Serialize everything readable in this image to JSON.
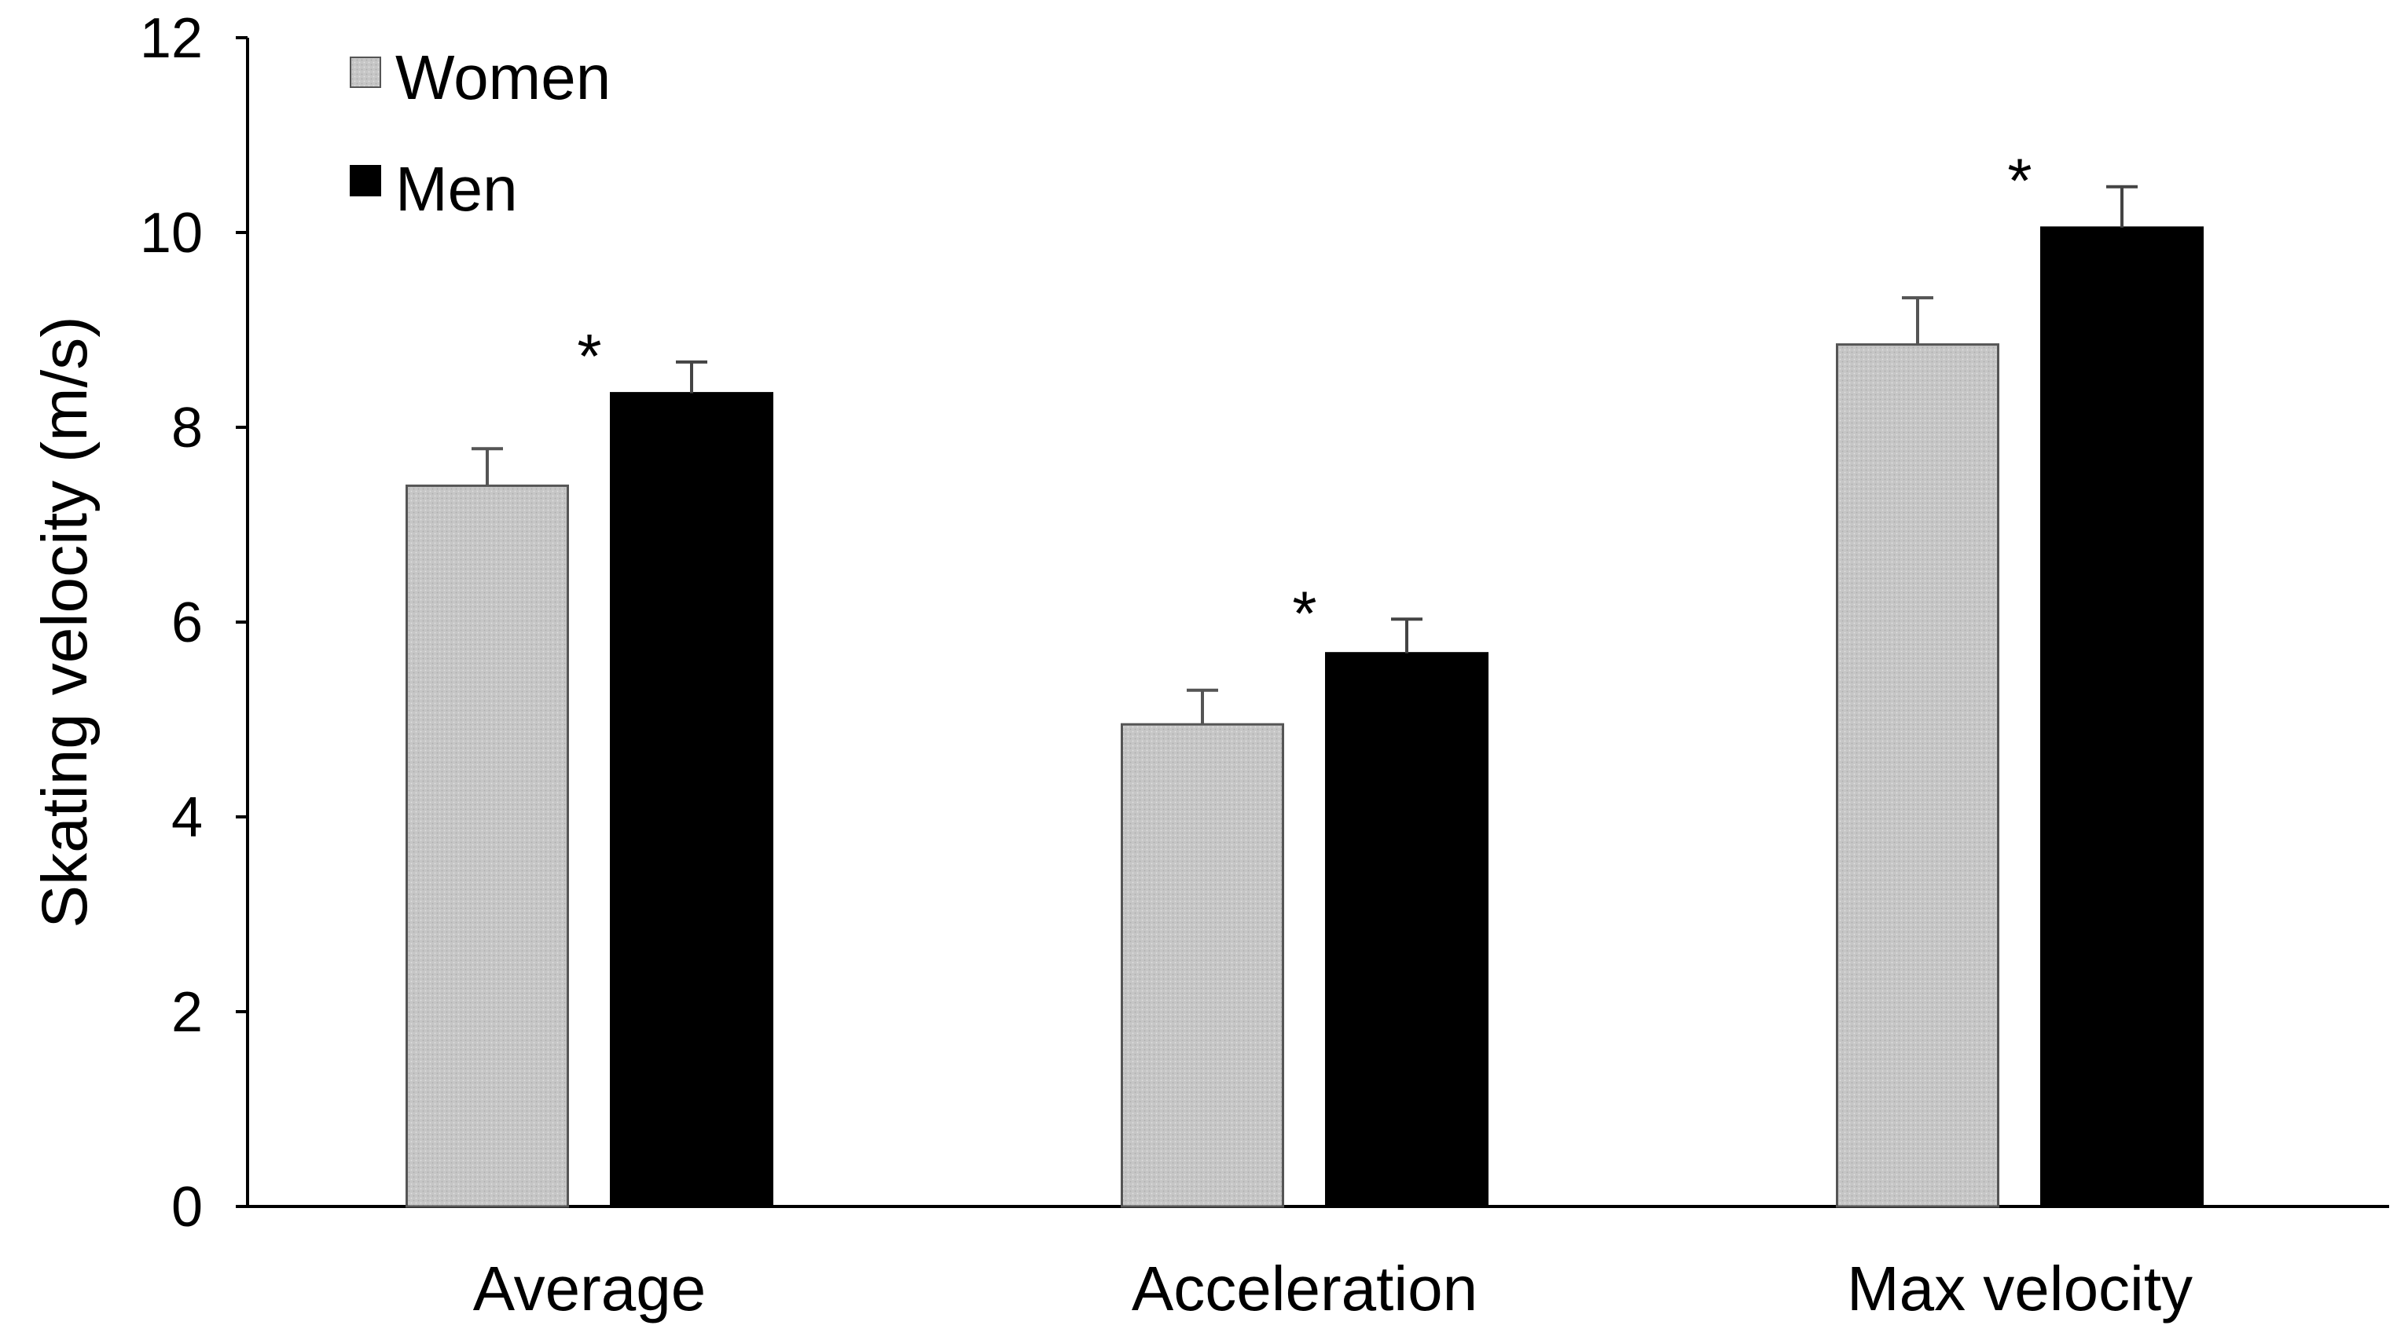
{
  "chart_data": {
    "type": "bar",
    "title": "",
    "xlabel": "",
    "ylabel": "Skating velocity (m/s)",
    "ylim": [
      0,
      12
    ],
    "yticks": [
      0,
      2,
      4,
      6,
      8,
      10,
      12
    ],
    "grid": false,
    "legend_position": "top-left",
    "categories": [
      "Average",
      "Acceleration",
      "Max velocity"
    ],
    "series": [
      {
        "name": "Women",
        "color": "#c0c0c0",
        "values": [
          7.4,
          4.95,
          8.85
        ],
        "errors": [
          0.38,
          0.35,
          0.48
        ]
      },
      {
        "name": "Men",
        "color": "#000000",
        "values": [
          8.35,
          5.68,
          10.05
        ],
        "errors": [
          0.32,
          0.35,
          0.42
        ]
      }
    ],
    "annotations": [
      "*",
      "*",
      "*"
    ]
  }
}
